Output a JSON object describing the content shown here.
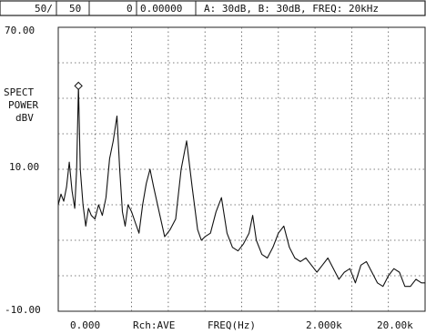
{
  "header": {
    "avg_count": "50/",
    "avg_total": "50",
    "marker_index": "0",
    "marker_value": "0.00000",
    "settings": "A: 30dB, B: 30dB, FREQ: 20kHz"
  },
  "chart_data": {
    "type": "line",
    "ylabel_lines": [
      "SPECT",
      "POWER",
      "dBV"
    ],
    "y_ticks": [
      "70.00",
      "10.00",
      "-10.00"
    ],
    "ylim": [
      -10,
      70
    ],
    "x_labels": [
      "0.000",
      "Rch:AVE",
      "FREQ(Hz)",
      "2.000k",
      "20.00k"
    ],
    "xlim": [
      0,
      20
    ],
    "grid": true,
    "marker": {
      "x": 1.1,
      "y": 53.5
    },
    "series": [
      {
        "x": [
          0,
          0.15,
          0.3,
          0.45,
          0.6,
          0.75,
          0.9,
          1.0,
          1.1,
          1.2,
          1.35,
          1.5,
          1.65,
          1.8,
          2.0,
          2.2,
          2.4,
          2.6,
          2.8,
          3.0,
          3.2,
          3.35,
          3.5,
          3.65,
          3.8,
          4.0,
          4.2,
          4.4,
          4.6,
          4.8,
          5.0,
          5.2,
          5.5,
          5.8,
          6.1,
          6.4,
          6.7,
          7.0,
          7.3,
          7.6,
          7.8,
          8.0,
          8.3,
          8.6,
          8.9,
          9.2,
          9.5,
          9.8,
          10.1,
          10.4,
          10.6,
          10.8,
          11.1,
          11.4,
          11.7,
          12.0,
          12.3,
          12.6,
          12.9,
          13.2,
          13.5,
          13.8,
          14.1,
          14.4,
          14.7,
          15.0,
          15.3,
          15.6,
          15.9,
          16.2,
          16.5,
          16.8,
          17.1,
          17.4,
          17.7,
          18.0,
          18.3,
          18.6,
          18.9,
          19.2,
          19.5,
          19.8,
          20.0
        ],
        "y": [
          20,
          23,
          21,
          25,
          32,
          24,
          19,
          30,
          53.5,
          30,
          20,
          14,
          19,
          17,
          16,
          20,
          17,
          22,
          33,
          38,
          45,
          30,
          18,
          14,
          20,
          18,
          15,
          12,
          20,
          26,
          30,
          25,
          18,
          11,
          13,
          16,
          30,
          38,
          25,
          13,
          10,
          11,
          12,
          18,
          22,
          12,
          8,
          7,
          9,
          12,
          17,
          10,
          6,
          5,
          8,
          12,
          14,
          8,
          5,
          4,
          5,
          3,
          1,
          3,
          5,
          2,
          -1,
          1,
          2,
          -2,
          3,
          4,
          1,
          -2,
          -3,
          0,
          2,
          1,
          -3,
          -3,
          -1,
          -2,
          -2
        ]
      }
    ]
  }
}
